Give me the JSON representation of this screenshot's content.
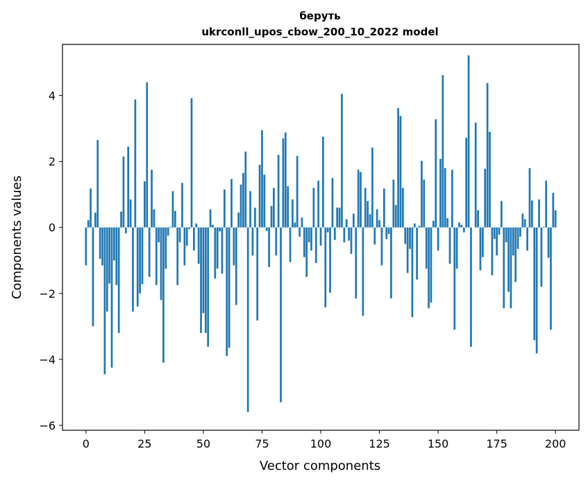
{
  "chart_data": {
    "type": "bar",
    "title_line1": "беруть",
    "title_line2": "ukrconll_upos_cbow_200_10_2022 model",
    "xlabel": "Vector components",
    "ylabel": "Components values",
    "xlim": [
      -10,
      210
    ],
    "ylim": [
      -6.15,
      5.55
    ],
    "xticks": [
      0,
      25,
      50,
      75,
      100,
      125,
      150,
      175,
      200
    ],
    "yticks": [
      -6,
      -4,
      -2,
      0,
      2,
      4
    ],
    "ytick_labels": [
      "−6",
      "−4",
      "−2",
      "0",
      "2",
      "4"
    ],
    "color": "#1f77b4",
    "grid": false,
    "values": [
      -1.15,
      0.22,
      1.18,
      -3.0,
      0.45,
      2.65,
      -0.95,
      -1.15,
      -4.45,
      -2.55,
      -1.7,
      -4.25,
      -1.0,
      -1.75,
      -3.2,
      0.48,
      2.15,
      -0.18,
      2.45,
      0.85,
      -2.55,
      3.88,
      -2.4,
      -2.0,
      -1.72,
      1.4,
      4.4,
      -1.5,
      1.75,
      0.55,
      -1.75,
      -0.45,
      -2.2,
      -4.1,
      -1.25,
      -0.25,
      0.02,
      1.1,
      0.5,
      -1.75,
      -0.45,
      1.35,
      -1.15,
      -0.55,
      -0.05,
      3.92,
      -0.7,
      0.12,
      -1.1,
      -3.2,
      -2.6,
      -3.2,
      -3.62,
      0.55,
      0.08,
      -1.55,
      -1.25,
      -0.12,
      -1.4,
      1.15,
      -3.9,
      -3.65,
      1.47,
      -1.15,
      -2.35,
      0.45,
      1.3,
      1.65,
      2.3,
      -5.6,
      1.1,
      -0.85,
      0.6,
      -2.82,
      1.9,
      2.95,
      1.6,
      -0.1,
      -1.2,
      0.65,
      1.2,
      -0.85,
      2.2,
      -5.3,
      2.7,
      2.88,
      1.25,
      -1.05,
      0.85,
      0.15,
      2.17,
      -0.28,
      0.3,
      -0.9,
      -1.5,
      -0.45,
      -0.7,
      1.2,
      -1.08,
      1.42,
      -0.55,
      2.75,
      -2.42,
      -0.15,
      -1.98,
      1.5,
      -0.38,
      0.6,
      0.6,
      4.05,
      -0.45,
      0.25,
      -0.4,
      -0.8,
      0.42,
      -2.15,
      1.75,
      1.68,
      -2.68,
      1.2,
      0.8,
      0.4,
      2.42,
      -0.52,
      0.55,
      0.22,
      -1.15,
      1.18,
      -0.35,
      -0.2,
      -2.15,
      1.45,
      0.68,
      3.62,
      3.38,
      1.2,
      -0.5,
      -1.38,
      -0.65,
      -2.72,
      0.12,
      -1.58,
      0.05,
      2.02,
      1.45,
      -1.25,
      -2.45,
      -2.28,
      0.2,
      3.28,
      -0.7,
      2.08,
      4.62,
      1.8,
      0.28,
      -1.1,
      1.75,
      -3.1,
      -1.25,
      0.15,
      0.08,
      -0.15,
      2.72,
      5.22,
      -3.62,
      0.0,
      3.18,
      0.52,
      -1.3,
      -0.9,
      1.78,
      4.38,
      2.9,
      -1.45,
      -0.35,
      -0.85,
      -0.22,
      0.8,
      -2.45,
      -0.45,
      -1.95,
      -2.45,
      -0.85,
      -1.65,
      -0.65,
      -0.28,
      0.42,
      0.25,
      -0.7,
      1.8,
      0.82,
      -3.42,
      -3.82,
      0.85,
      -1.8,
      0.02,
      1.42,
      -0.92,
      -3.1,
      1.05,
      0.52
    ]
  }
}
